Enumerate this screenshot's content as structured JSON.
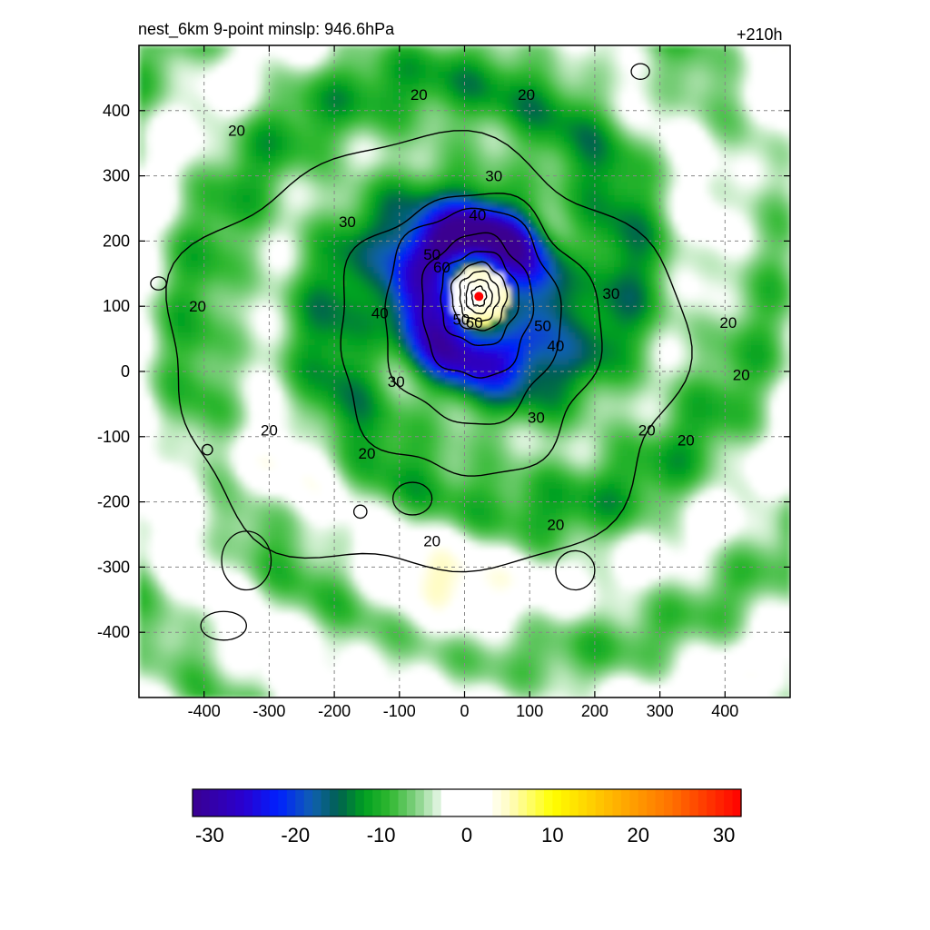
{
  "header": {
    "left_title": "nest_6km  9-point minslp: 946.6hPa",
    "right_title": "+210h"
  },
  "chart_data": {
    "type": "heatmap",
    "title": "nest_6km  9-point minslp: 946.6hPa",
    "time_label": "+210h",
    "xlabel": "",
    "ylabel": "",
    "xlim": [
      -500,
      500
    ],
    "ylim": [
      -500,
      500
    ],
    "xticks": [
      -400,
      -300,
      -200,
      -100,
      0,
      100,
      200,
      300,
      400
    ],
    "yticks": [
      400,
      300,
      200,
      100,
      0,
      -100,
      -200,
      -300,
      -400
    ],
    "grid": true,
    "grid_style": "dashed",
    "center_marker": {
      "x": 22,
      "y": 115,
      "color": "#ff0000"
    },
    "shading": {
      "description_scale": "diverging color bar",
      "colorbar_ticks": [
        -30,
        -20,
        -10,
        0,
        10,
        20,
        30
      ],
      "colorbar_range": [
        -32,
        32
      ],
      "colorbar_orientation": "horizontal",
      "colorbar_placement": "bottom",
      "palette_stops": [
        {
          "v": -32,
          "c": "#3a0090"
        },
        {
          "v": -26,
          "c": "#2a00d0"
        },
        {
          "v": -22,
          "c": "#0020ff"
        },
        {
          "v": -18,
          "c": "#1060b0"
        },
        {
          "v": -15,
          "c": "#006050"
        },
        {
          "v": -12,
          "c": "#00a020"
        },
        {
          "v": -9,
          "c": "#30b830"
        },
        {
          "v": -6,
          "c": "#80d080"
        },
        {
          "v": -4,
          "c": "#c8ecc8"
        },
        {
          "v": -2.5,
          "c": "#ffffff"
        },
        {
          "v": 2.5,
          "c": "#ffffff"
        },
        {
          "v": 5,
          "c": "#fffcc0"
        },
        {
          "v": 10,
          "c": "#ffff00"
        },
        {
          "v": 16,
          "c": "#ffc000"
        },
        {
          "v": 24,
          "c": "#ff7000"
        },
        {
          "v": 32,
          "c": "#ff0000"
        }
      ]
    },
    "contours": {
      "levels_labeled": [
        20,
        30,
        40,
        50,
        60
      ],
      "labels": [
        {
          "text": "20",
          "x": -70,
          "y": 425
        },
        {
          "text": "20",
          "x": 95,
          "y": 425
        },
        {
          "text": "20",
          "x": -350,
          "y": 370
        },
        {
          "text": "20",
          "x": -410,
          "y": 100
        },
        {
          "text": "20",
          "x": 405,
          "y": 75
        },
        {
          "text": "20",
          "x": 425,
          "y": -5
        },
        {
          "text": "20",
          "x": -300,
          "y": -90
        },
        {
          "text": "20",
          "x": -150,
          "y": -125
        },
        {
          "text": "20",
          "x": 280,
          "y": -90
        },
        {
          "text": "20",
          "x": 340,
          "y": -105
        },
        {
          "text": "20",
          "x": 140,
          "y": -235
        },
        {
          "text": "20",
          "x": -50,
          "y": -260
        },
        {
          "text": "30",
          "x": 45,
          "y": 300
        },
        {
          "text": "30",
          "x": -180,
          "y": 230
        },
        {
          "text": "30",
          "x": 225,
          "y": 120
        },
        {
          "text": "30",
          "x": -105,
          "y": -15
        },
        {
          "text": "30",
          "x": 110,
          "y": -70
        },
        {
          "text": "40",
          "x": 20,
          "y": 240
        },
        {
          "text": "40",
          "x": -130,
          "y": 90
        },
        {
          "text": "40",
          "x": 140,
          "y": 40
        },
        {
          "text": "50",
          "x": -50,
          "y": 180
        },
        {
          "text": "50",
          "x": 120,
          "y": 70
        },
        {
          "text": "60",
          "x": -35,
          "y": 160
        },
        {
          "text": "60",
          "x": 15,
          "y": 75
        },
        {
          "text": "50",
          "x": -5,
          "y": 80
        }
      ]
    }
  }
}
